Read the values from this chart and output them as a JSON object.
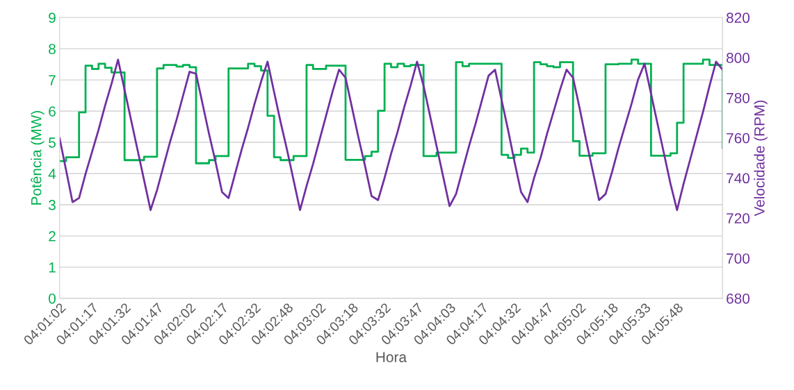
{
  "chart_data": {
    "type": "line",
    "xlabel": "Hora",
    "ylabel": "Potência (MW)",
    "y2label": "Velocidade (RPM)",
    "categories": [
      "04:01:02",
      null,
      null,
      null,
      null,
      "04:01:17",
      null,
      null,
      null,
      null,
      "04:01:32",
      null,
      null,
      null,
      null,
      "04:01:47",
      null,
      null,
      null,
      null,
      "04:02:02",
      null,
      null,
      null,
      null,
      "04:02:17",
      null,
      null,
      null,
      null,
      "04:02:32",
      null,
      null,
      null,
      null,
      "04:02:48",
      null,
      null,
      null,
      null,
      "04:03:02",
      null,
      null,
      null,
      null,
      "04:03:18",
      null,
      null,
      null,
      null,
      "04:03:32",
      null,
      null,
      null,
      null,
      "04:03:47",
      null,
      null,
      null,
      null,
      "04:04:03",
      null,
      null,
      null,
      null,
      "04:04:17",
      null,
      null,
      null,
      null,
      "04:04:32",
      null,
      null,
      null,
      null,
      "04:04:47",
      null,
      null,
      null,
      null,
      "04:05:02",
      null,
      null,
      null,
      null,
      "04:05:18",
      null,
      null,
      null,
      null,
      "04:05:33",
      null,
      null,
      null,
      null,
      "04:05:48",
      null,
      null,
      null,
      null,
      null,
      null,
      null
    ],
    "series": [
      {
        "type": "step",
        "axis": "y",
        "color": "#00b050",
        "values": [
          4.4,
          4.52,
          4.52,
          5.96,
          7.46,
          7.35,
          7.52,
          7.39,
          7.24,
          7.24,
          4.43,
          4.43,
          4.43,
          4.54,
          4.54,
          7.37,
          7.48,
          7.48,
          7.43,
          7.48,
          7.41,
          4.33,
          4.33,
          4.43,
          4.56,
          4.56,
          7.37,
          7.37,
          7.37,
          7.52,
          7.44,
          7.3,
          5.85,
          4.52,
          4.43,
          4.43,
          4.56,
          4.56,
          7.48,
          7.35,
          7.35,
          7.46,
          7.46,
          7.46,
          4.44,
          4.44,
          4.44,
          4.56,
          4.7,
          6.01,
          7.52,
          7.41,
          7.52,
          7.44,
          7.48,
          7.48,
          4.56,
          4.56,
          4.67,
          4.67,
          4.67,
          7.57,
          7.44,
          7.52,
          7.52,
          7.52,
          7.52,
          7.52,
          4.6,
          4.5,
          4.6,
          4.8,
          4.67,
          7.57,
          7.5,
          7.44,
          7.41,
          7.57,
          7.57,
          5.04,
          4.57,
          4.57,
          4.65,
          4.65,
          7.5,
          7.5,
          7.52,
          7.52,
          7.65,
          7.52,
          7.52,
          4.57,
          4.57,
          4.57,
          4.65,
          5.63,
          7.52,
          7.52,
          7.52,
          7.65,
          7.48,
          7.48,
          4.81
        ]
      },
      {
        "axis": "y2",
        "color": "#7030a0",
        "values": [
          760,
          744,
          728,
          730,
          742,
          753,
          764,
          776,
          787,
          799,
          784,
          769,
          754,
          739,
          724,
          734,
          746,
          758,
          769,
          781,
          793,
          792,
          777,
          762,
          748,
          733,
          730,
          742,
          754,
          765,
          777,
          788,
          798,
          783,
          768,
          754,
          739,
          724,
          736,
          747,
          759,
          771,
          783,
          794,
          790,
          775,
          760,
          746,
          731,
          729,
          740,
          752,
          763,
          775,
          786,
          798,
          786,
          771,
          756,
          741,
          726,
          732,
          744,
          756,
          767,
          779,
          791,
          794,
          779,
          764,
          748,
          733,
          728,
          740,
          750,
          762,
          773,
          784,
          794,
          790,
          775,
          759,
          744,
          729,
          732,
          743,
          755,
          766,
          777,
          789,
          797,
          782,
          767,
          752,
          737,
          724,
          737,
          749,
          761,
          773,
          786,
          798,
          794
        ]
      }
    ],
    "ylim": [
      0,
      9
    ],
    "yticks": [
      0,
      1,
      2,
      3,
      4,
      5,
      6,
      7,
      8,
      9
    ],
    "y2lim": [
      680,
      820
    ],
    "y2ticks": [
      680,
      700,
      720,
      740,
      760,
      780,
      800,
      820
    ],
    "grid": "y",
    "legend": false
  }
}
